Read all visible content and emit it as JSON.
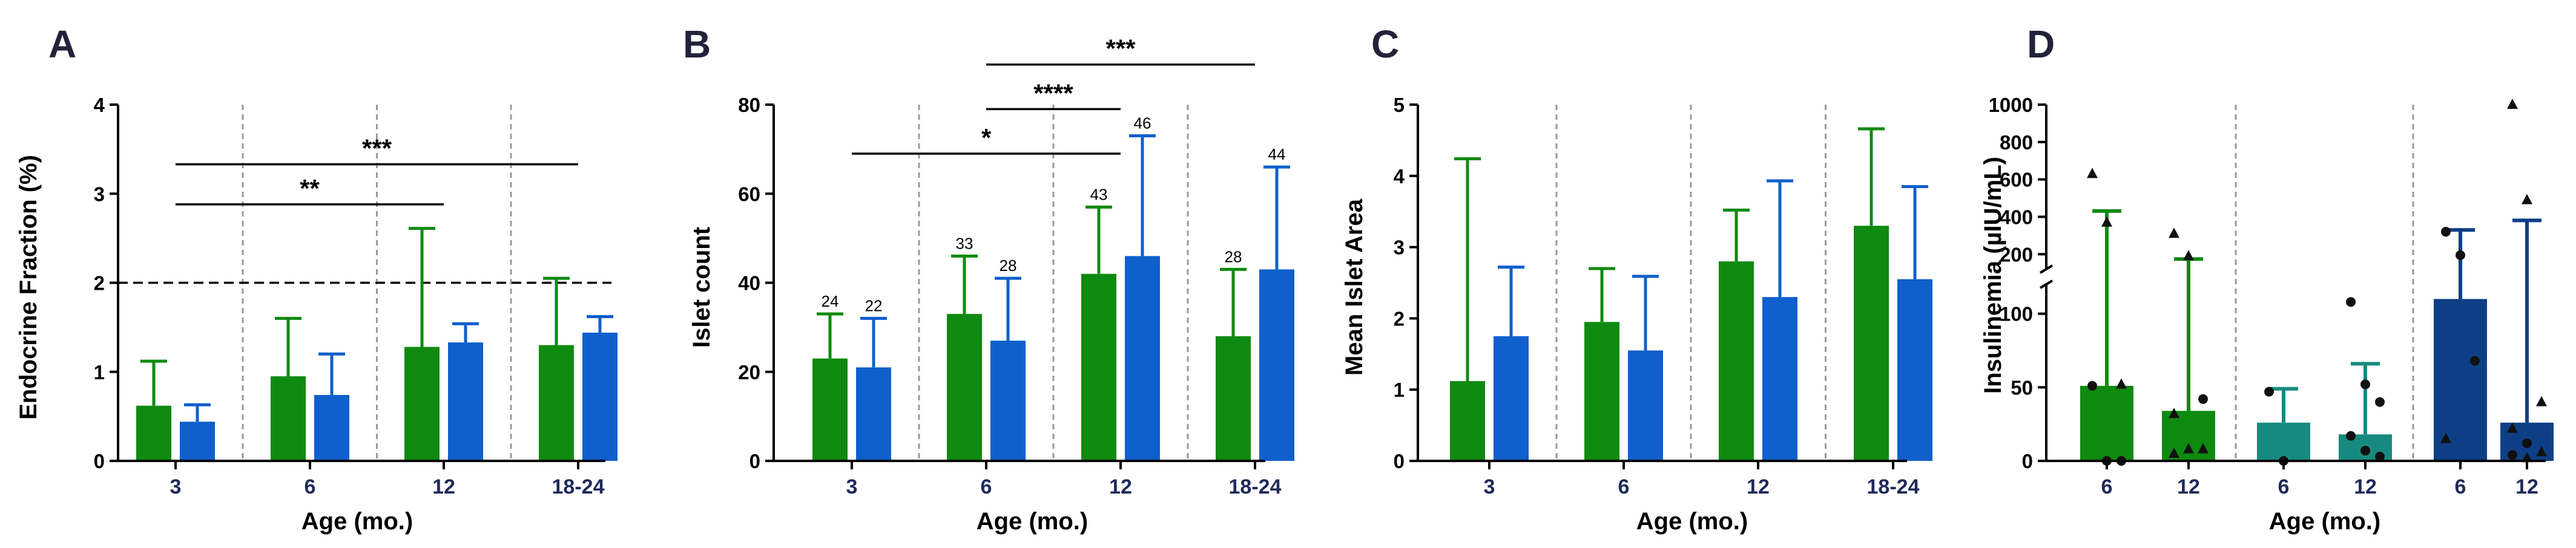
{
  "figure": {
    "colors": {
      "green": "#0f8a10",
      "blue": "#0f5fcc",
      "teal": "#178a80",
      "navy": "#0e3f86",
      "axis": "#000000",
      "divider": "#9a9a9a"
    },
    "xlabel": "Age (mo.)"
  },
  "chart_data": [
    {
      "panel": "A",
      "type": "bar",
      "ylabel": "Endocrine Fraction (%)",
      "ylim": [
        0,
        4
      ],
      "yticks": [
        0,
        1,
        2,
        3,
        4
      ],
      "xlabel": "Age (mo.)",
      "categories": [
        "3",
        "6",
        "12",
        "18-24"
      ],
      "series": [
        {
          "name": "green",
          "values": [
            0.62,
            0.95,
            1.28,
            1.3
          ],
          "error": [
            0.5,
            0.65,
            1.33,
            0.75
          ]
        },
        {
          "name": "blue",
          "values": [
            0.44,
            0.74,
            1.33,
            1.44
          ],
          "error": [
            0.19,
            0.46,
            0.21,
            0.18
          ]
        }
      ],
      "reference_line": 2,
      "significance": [
        {
          "from": 0,
          "to": 2,
          "y": 2.88,
          "label": "**"
        },
        {
          "from": 0,
          "to": 3,
          "y": 3.33,
          "label": "***"
        }
      ]
    },
    {
      "panel": "B",
      "type": "bar",
      "ylabel": "Islet count",
      "ylim": [
        0,
        80
      ],
      "yticks": [
        0,
        20,
        40,
        60,
        80
      ],
      "xlabel": "Age (mo.)",
      "categories": [
        "3",
        "6",
        "12",
        "18-24"
      ],
      "series": [
        {
          "name": "green",
          "values": [
            23,
            33,
            42,
            28
          ],
          "error": [
            10,
            13,
            15,
            15
          ],
          "n": [
            "24",
            "33",
            "43",
            "28"
          ]
        },
        {
          "name": "blue",
          "values": [
            21,
            27,
            46,
            43
          ],
          "error": [
            11,
            14,
            27,
            23
          ],
          "n": [
            "22",
            "28",
            "46",
            "44"
          ]
        }
      ],
      "significance": [
        {
          "from": 0,
          "to": 2,
          "y": 69,
          "label": "*"
        },
        {
          "from": 1,
          "to": 2,
          "y": 79,
          "label": "****"
        },
        {
          "from": 1,
          "to": 3,
          "y": 89,
          "label": "***"
        }
      ]
    },
    {
      "panel": "C",
      "type": "bar",
      "ylabel": "Mean Islet Area",
      "ylim": [
        0,
        5
      ],
      "yticks": [
        0,
        1,
        2,
        3,
        4,
        5
      ],
      "xlabel": "Age (mo.)",
      "categories": [
        "3",
        "6",
        "12",
        "18-24"
      ],
      "series": [
        {
          "name": "green",
          "values": [
            1.12,
            1.95,
            2.8,
            3.3
          ],
          "error": [
            3.12,
            0.75,
            0.72,
            1.36
          ]
        },
        {
          "name": "blue",
          "values": [
            1.75,
            1.55,
            2.3,
            2.55
          ],
          "error": [
            0.97,
            1.04,
            1.63,
            1.3
          ]
        }
      ]
    },
    {
      "panel": "D",
      "type": "bar",
      "ylabel": "Insulinemia (µIU/mL)",
      "xlabel": "Age (mo.)",
      "axis_break": {
        "lower": [
          0,
          120
        ],
        "upper": [
          120,
          1000
        ]
      },
      "yticks_lower": [
        0,
        50,
        100
      ],
      "yticks_upper": [
        200,
        400,
        600,
        800,
        1000
      ],
      "categories": [
        "6",
        "12",
        "6",
        "12",
        "6",
        "12"
      ],
      "groups": [
        "green",
        "green",
        "teal",
        "teal",
        "navy",
        "navy"
      ],
      "values": [
        51,
        34,
        26,
        18,
        110,
        26
      ],
      "error": [
        380,
        140,
        23,
        48,
        220,
        355
      ],
      "points": [
        [
          {
            "y": 630,
            "shape": "triangle"
          },
          {
            "y": 370,
            "shape": "triangle"
          },
          {
            "y": 52,
            "shape": "triangle"
          },
          {
            "y": 51,
            "shape": "circle"
          },
          {
            "y": 0,
            "shape": "circle"
          },
          {
            "y": 0,
            "shape": "circle"
          }
        ],
        [
          {
            "y": 310,
            "shape": "triangle"
          },
          {
            "y": 190,
            "shape": "triangle"
          },
          {
            "y": 42,
            "shape": "circle"
          },
          {
            "y": 32,
            "shape": "triangle"
          },
          {
            "y": 8,
            "shape": "triangle"
          },
          {
            "y": 8,
            "shape": "triangle"
          },
          {
            "y": 5,
            "shape": "triangle"
          }
        ],
        [
          {
            "y": 47,
            "shape": "circle"
          },
          {
            "y": 0,
            "shape": "circle"
          }
        ],
        [
          {
            "y": 108,
            "shape": "circle"
          },
          {
            "y": 52,
            "shape": "circle"
          },
          {
            "y": 40,
            "shape": "circle"
          },
          {
            "y": 17,
            "shape": "circle"
          },
          {
            "y": 7,
            "shape": "circle"
          },
          {
            "y": 3,
            "shape": "circle"
          }
        ],
        [
          {
            "y": 320,
            "shape": "circle"
          },
          {
            "y": 195,
            "shape": "circle"
          },
          {
            "y": 68,
            "shape": "circle"
          },
          {
            "y": 15,
            "shape": "triangle"
          }
        ],
        [
          {
            "y": 1000,
            "shape": "triangle"
          },
          {
            "y": 490,
            "shape": "triangle"
          },
          {
            "y": 40,
            "shape": "triangle"
          },
          {
            "y": 22,
            "shape": "triangle"
          },
          {
            "y": 12,
            "shape": "circle"
          },
          {
            "y": 6,
            "shape": "triangle"
          },
          {
            "y": 4,
            "shape": "circle"
          },
          {
            "y": 2,
            "shape": "triangle"
          }
        ]
      ]
    }
  ]
}
